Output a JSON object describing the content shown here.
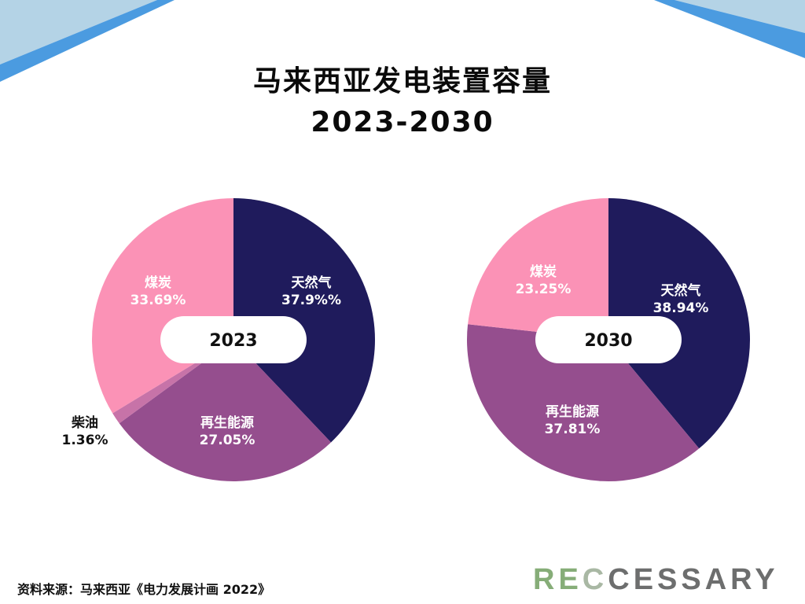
{
  "title_line1": "马来西亚发电装置容量",
  "title_line2": "2023-2030",
  "source": "资料来源：马来西亚《电力发展计画 2022》",
  "logo": {
    "part1": "RE",
    "part2": "C",
    "part3": "CESSARY"
  },
  "colors": {
    "天然气": "#1f1b5c",
    "再生能源": "#954e8e",
    "柴油": "#c773a8",
    "煤炭": "#fb92b6",
    "deco": "#4b9be0",
    "deco_light": "#b4d3e6"
  },
  "chart_data": [
    {
      "type": "pie",
      "center_label": "2023",
      "slices": [
        {
          "name": "天然气",
          "value": 37.9,
          "label": "37.9%%"
        },
        {
          "name": "再生能源",
          "value": 27.05,
          "label": "27.05%"
        },
        {
          "name": "柴油",
          "value": 1.36,
          "label": "1.36%"
        },
        {
          "name": "煤炭",
          "value": 33.69,
          "label": "33.69%"
        }
      ]
    },
    {
      "type": "pie",
      "center_label": "2030",
      "slices": [
        {
          "name": "天然气",
          "value": 38.94,
          "label": "38.94%"
        },
        {
          "name": "再生能源",
          "value": 37.81,
          "label": "37.81%"
        },
        {
          "name": "煤炭",
          "value": 23.25,
          "label": "23.25%"
        }
      ]
    }
  ]
}
